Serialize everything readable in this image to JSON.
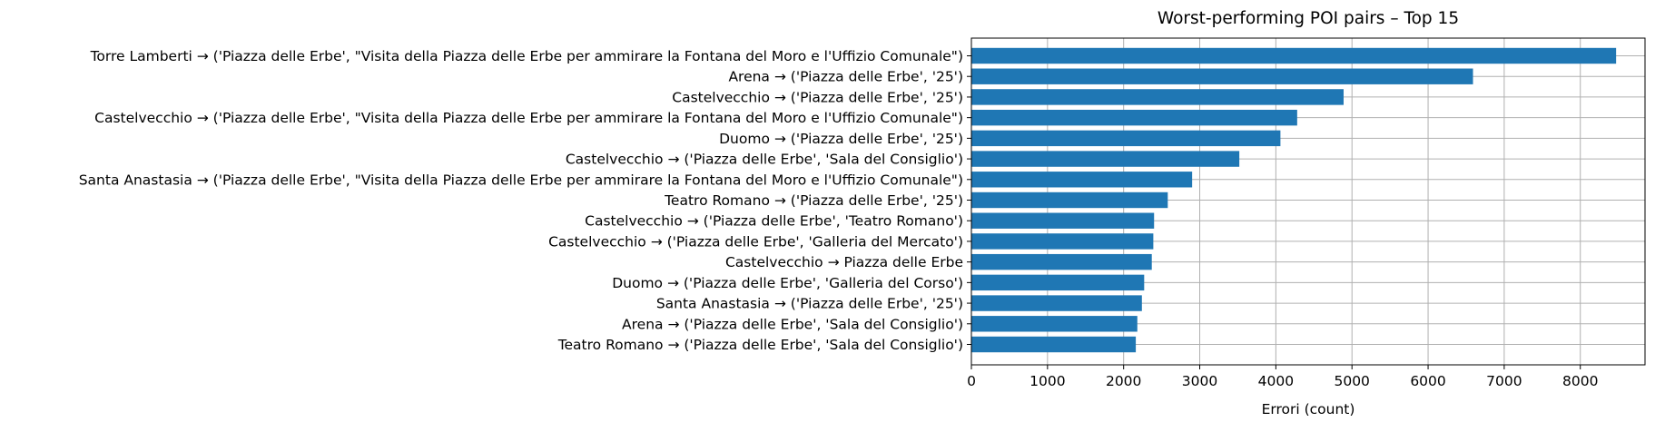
{
  "chart_data": {
    "type": "bar",
    "orientation": "horizontal",
    "title": "Worst-performing POI pairs – Top 15",
    "xlabel": "Errori (count)",
    "ylabel": "",
    "xlim": [
      0,
      8850
    ],
    "xticks": [
      0,
      1000,
      2000,
      3000,
      4000,
      5000,
      6000,
      7000,
      8000
    ],
    "grid": true,
    "bar_color": "#1f77b4",
    "categories": [
      "Torre Lamberti → ('Piazza delle Erbe', \"Visita della Piazza delle Erbe per ammirare la Fontana del Moro e l'Uffizio Comunale\")",
      "Arena → ('Piazza delle Erbe', '25')",
      "Castelvecchio → ('Piazza delle Erbe', '25')",
      "Castelvecchio → ('Piazza delle Erbe', \"Visita della Piazza delle Erbe per ammirare la Fontana del Moro e l'Uffizio Comunale\")",
      "Duomo → ('Piazza delle Erbe', '25')",
      "Castelvecchio → ('Piazza delle Erbe', 'Sala del Consiglio')",
      "Santa Anastasia → ('Piazza delle Erbe', \"Visita della Piazza delle Erbe per ammirare la Fontana del Moro e l'Uffizio Comunale\")",
      "Teatro Romano → ('Piazza delle Erbe', '25')",
      "Castelvecchio → ('Piazza delle Erbe', 'Teatro Romano')",
      "Castelvecchio → ('Piazza delle Erbe', 'Galleria del Mercato')",
      "Castelvecchio → Piazza delle Erbe",
      "Duomo → ('Piazza delle Erbe', 'Galleria del Corso')",
      "Santa Anastasia → ('Piazza delle Erbe', '25')",
      "Arena → ('Piazza delle Erbe', 'Sala del Consiglio')",
      "Teatro Romano → ('Piazza delle Erbe', 'Sala del Consiglio')"
    ],
    "values": [
      8470,
      6590,
      4890,
      4280,
      4060,
      3520,
      2900,
      2580,
      2400,
      2390,
      2370,
      2270,
      2240,
      2180,
      2160
    ]
  }
}
